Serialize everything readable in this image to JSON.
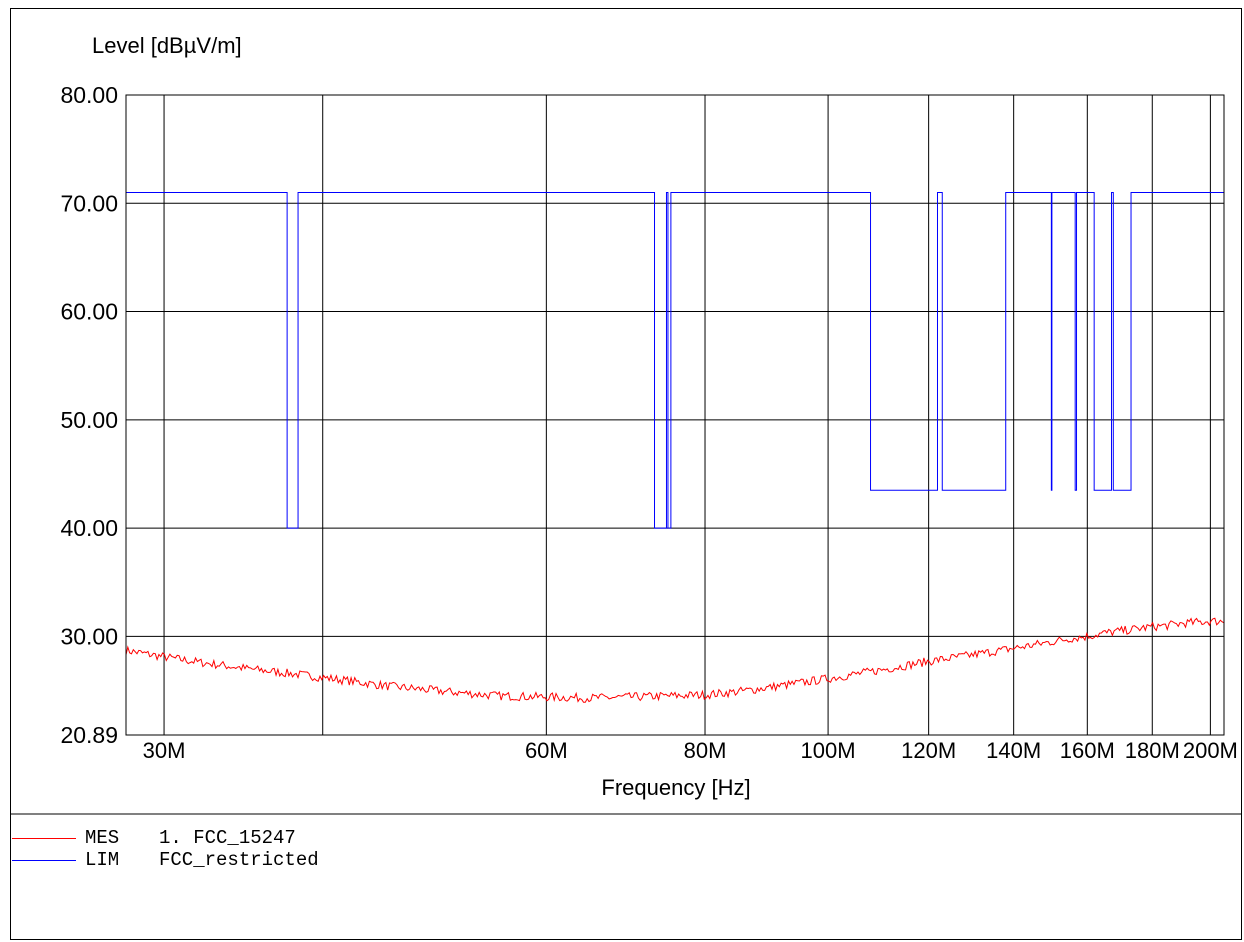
{
  "chart_data": {
    "type": "line",
    "ylabel": "Level [dBµV/m]",
    "xlabel": "Frequency [Hz]",
    "ylim": [
      20.89,
      80.0
    ],
    "y_ticks": [
      20.89,
      30.0,
      40.0,
      50.0,
      60.0,
      70.0,
      80.0
    ],
    "y_tick_labels": [
      "20.89",
      "30.00",
      "40.00",
      "50.00",
      "60.00",
      "70.00",
      "80.00"
    ],
    "x_scale": "log",
    "xlim": [
      28000000,
      205000000
    ],
    "x_ticks": [
      30000000,
      40000000,
      60000000,
      80000000,
      100000000,
      120000000,
      140000000,
      160000000,
      180000000,
      200000000
    ],
    "x_tick_labels": [
      "30M",
      "",
      "60M",
      "80M",
      "100M",
      "120M",
      "140M",
      "160M",
      "180M",
      "200M"
    ],
    "grid": true,
    "series": [
      {
        "name": "FCC_restricted",
        "legend_code": "LIM",
        "color": "#0000ff",
        "style": "step",
        "x": [
          28000000,
          37500000,
          37500000,
          38250000,
          38250000,
          73000000,
          73000000,
          74600000,
          74600000,
          74800000,
          74800000,
          75200000,
          75200000,
          108000000,
          108000000,
          121940000,
          121940000,
          123000000,
          123000000,
          138000000,
          138000000,
          149900000,
          149900000,
          150050000,
          150050000,
          156520000,
          156520000,
          156900000,
          156900000,
          162000000,
          162000000,
          167170000,
          167170000,
          167720000,
          167720000,
          173200000,
          173200000,
          205000000
        ],
        "y": [
          71,
          71,
          40,
          40,
          71,
          71,
          40,
          40,
          71,
          71,
          40,
          40,
          71,
          71,
          43.5,
          43.5,
          71,
          71,
          43.5,
          43.5,
          71,
          71,
          43.5,
          43.5,
          71,
          71,
          43.5,
          43.5,
          71,
          71,
          43.5,
          43.5,
          71,
          71,
          43.5,
          43.5,
          71,
          71
        ]
      },
      {
        "name": "1. FCC_15247",
        "legend_code": "MES",
        "color": "#ff0000",
        "style": "line",
        "x": [
          28000000,
          30000000,
          32000000,
          35000000,
          40000000,
          45000000,
          50000000,
          55000000,
          60000000,
          65000000,
          70000000,
          75000000,
          80000000,
          85000000,
          90000000,
          95000000,
          100000000,
          105000000,
          110000000,
          115000000,
          120000000,
          125000000,
          130000000,
          135000000,
          140000000,
          145000000,
          150000000,
          155000000,
          160000000,
          165000000,
          170000000,
          175000000,
          180000000,
          185000000,
          190000000,
          195000000,
          200000000,
          205000000
        ],
        "y": [
          28.7,
          28.1,
          27.6,
          27.0,
          26.2,
          25.4,
          24.9,
          24.5,
          24.4,
          24.3,
          24.4,
          24.5,
          24.6,
          24.9,
          25.3,
          25.7,
          26.1,
          26.5,
          26.9,
          27.3,
          27.7,
          28.0,
          28.3,
          28.6,
          28.9,
          29.2,
          29.5,
          29.8,
          30.0,
          30.3,
          30.5,
          30.7,
          30.9,
          31.0,
          31.2,
          31.3,
          31.4,
          31.4
        ],
        "noise": 0.4
      }
    ],
    "legend_placement": "bottom-left"
  }
}
